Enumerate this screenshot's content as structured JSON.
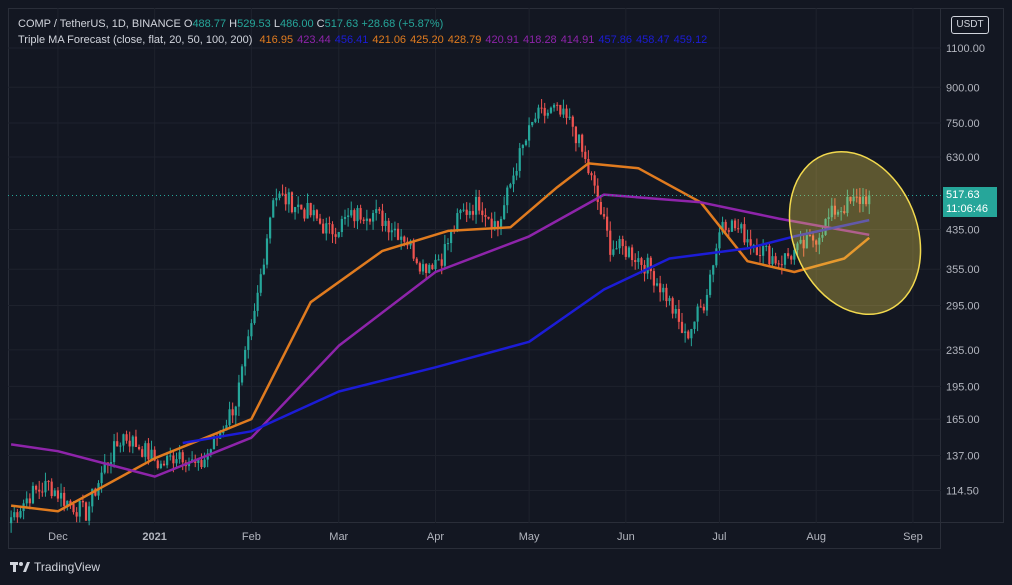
{
  "legend": {
    "symbol": "COMP / TetherUS, 1D, BINANCE",
    "open_label": "O",
    "open": "488.77",
    "high_label": "H",
    "high": "529.53",
    "low_label": "L",
    "low": "486.00",
    "close_label": "C",
    "close": "517.63",
    "change": "+28.68 (+5.87%)",
    "indicator": "Triple MA Forecast (close, flat, 20, 50, 100, 200)",
    "indicator_values": [
      {
        "text": "416.95",
        "color": "#e07b1f"
      },
      {
        "text": "423.44",
        "color": "#8e24aa"
      },
      {
        "text": "456.41",
        "color": "#1c1cd6"
      },
      {
        "text": "421.06",
        "color": "#e07b1f"
      },
      {
        "text": "425.20",
        "color": "#e07b1f"
      },
      {
        "text": "428.79",
        "color": "#e07b1f"
      },
      {
        "text": "420.91",
        "color": "#8e24aa"
      },
      {
        "text": "418.28",
        "color": "#8e24aa"
      },
      {
        "text": "414.91",
        "color": "#8e24aa"
      },
      {
        "text": "457.86",
        "color": "#1c1cd6"
      },
      {
        "text": "458.47",
        "color": "#1c1cd6"
      },
      {
        "text": "459.12",
        "color": "#1c1cd6"
      }
    ]
  },
  "currency_button": "USDT",
  "last_price": "517.63",
  "countdown": "11:06:46",
  "footer_brand": "TradingView",
  "colors": {
    "up": "#26a69a",
    "down": "#ef5350",
    "ma20": "#e07b1f",
    "ma50": "#8e24aa",
    "ma100": "#1c1cd6",
    "highlight": "#f2d94e"
  },
  "chart_data": {
    "type": "candlestick",
    "y_scale": "log",
    "y_ticks": [
      "1100.00",
      "900.00",
      "750.00",
      "630.00",
      "435.00",
      "355.00",
      "295.00",
      "235.00",
      "195.00",
      "165.00",
      "137.00",
      "114.50"
    ],
    "x_ticks": [
      "Dec",
      "2021",
      "Feb",
      "Mar",
      "Apr",
      "May",
      "Jun",
      "Jul",
      "Aug",
      "Sep"
    ],
    "x_range": [
      "2020-11-15",
      "2021-09-10"
    ],
    "ylim": [
      97,
      1350
    ],
    "close_series": [
      [
        "2020-11-16",
        100
      ],
      [
        "2020-11-22",
        112
      ],
      [
        "2020-11-28",
        118
      ],
      [
        "2020-12-04",
        108
      ],
      [
        "2020-12-10",
        102
      ],
      [
        "2020-12-16",
        130
      ],
      [
        "2020-12-22",
        152
      ],
      [
        "2020-12-28",
        142
      ],
      [
        "2021-01-03",
        130
      ],
      [
        "2021-01-09",
        140
      ],
      [
        "2021-01-15",
        128
      ],
      [
        "2021-01-21",
        150
      ],
      [
        "2021-01-27",
        180
      ],
      [
        "2021-02-02",
        280
      ],
      [
        "2021-02-08",
        520
      ],
      [
        "2021-02-14",
        500
      ],
      [
        "2021-02-20",
        470
      ],
      [
        "2021-02-26",
        430
      ],
      [
        "2021-03-04",
        460
      ],
      [
        "2021-03-10",
        480
      ],
      [
        "2021-03-16",
        455
      ],
      [
        "2021-03-22",
        420
      ],
      [
        "2021-03-28",
        360
      ],
      [
        "2021-04-03",
        380
      ],
      [
        "2021-04-09",
        470
      ],
      [
        "2021-04-15",
        500
      ],
      [
        "2021-04-21",
        440
      ],
      [
        "2021-04-27",
        610
      ],
      [
        "2021-05-03",
        770
      ],
      [
        "2021-05-09",
        800
      ],
      [
        "2021-05-15",
        740
      ],
      [
        "2021-05-21",
        560
      ],
      [
        "2021-05-27",
        400
      ],
      [
        "2021-06-02",
        390
      ],
      [
        "2021-06-08",
        360
      ],
      [
        "2021-06-14",
        310
      ],
      [
        "2021-06-20",
        250
      ],
      [
        "2021-06-26",
        300
      ],
      [
        "2021-07-02",
        460
      ],
      [
        "2021-07-08",
        430
      ],
      [
        "2021-07-14",
        395
      ],
      [
        "2021-07-20",
        370
      ],
      [
        "2021-07-26",
        390
      ],
      [
        "2021-08-01",
        420
      ],
      [
        "2021-08-07",
        480
      ],
      [
        "2021-08-13",
        500
      ],
      [
        "2021-08-18",
        517.63
      ]
    ],
    "series": [
      {
        "name": "MA20",
        "color": "#e07b1f",
        "values": [
          [
            "2020-11-16",
            106
          ],
          [
            "2020-12-01",
            103
          ],
          [
            "2021-01-01",
            135
          ],
          [
            "2021-02-01",
            165
          ],
          [
            "2021-02-20",
            300
          ],
          [
            "2021-03-15",
            390
          ],
          [
            "2021-04-05",
            432
          ],
          [
            "2021-04-25",
            440
          ],
          [
            "2021-05-10",
            540
          ],
          [
            "2021-05-20",
            610
          ],
          [
            "2021-06-05",
            595
          ],
          [
            "2021-06-25",
            500
          ],
          [
            "2021-07-10",
            370
          ],
          [
            "2021-07-25",
            350
          ],
          [
            "2021-08-10",
            375
          ],
          [
            "2021-08-18",
            416.95
          ]
        ]
      },
      {
        "name": "MA50",
        "color": "#8e24aa",
        "values": [
          [
            "2020-11-16",
            145
          ],
          [
            "2020-12-01",
            140
          ],
          [
            "2021-01-01",
            123
          ],
          [
            "2021-02-01",
            150
          ],
          [
            "2021-03-01",
            240
          ],
          [
            "2021-04-01",
            350
          ],
          [
            "2021-05-01",
            420
          ],
          [
            "2021-05-25",
            520
          ],
          [
            "2021-06-25",
            500
          ],
          [
            "2021-07-20",
            460
          ],
          [
            "2021-08-18",
            423.44
          ]
        ]
      },
      {
        "name": "MA100",
        "color": "#1c1cd6",
        "values": [
          [
            "2021-01-10",
            146
          ],
          [
            "2021-02-01",
            155
          ],
          [
            "2021-03-01",
            190
          ],
          [
            "2021-04-01",
            215
          ],
          [
            "2021-05-01",
            245
          ],
          [
            "2021-05-25",
            320
          ],
          [
            "2021-06-15",
            375
          ],
          [
            "2021-07-10",
            395
          ],
          [
            "2021-07-25",
            420
          ],
          [
            "2021-08-18",
            456.41
          ]
        ]
      }
    ],
    "highlight_shape": "ellipse"
  }
}
